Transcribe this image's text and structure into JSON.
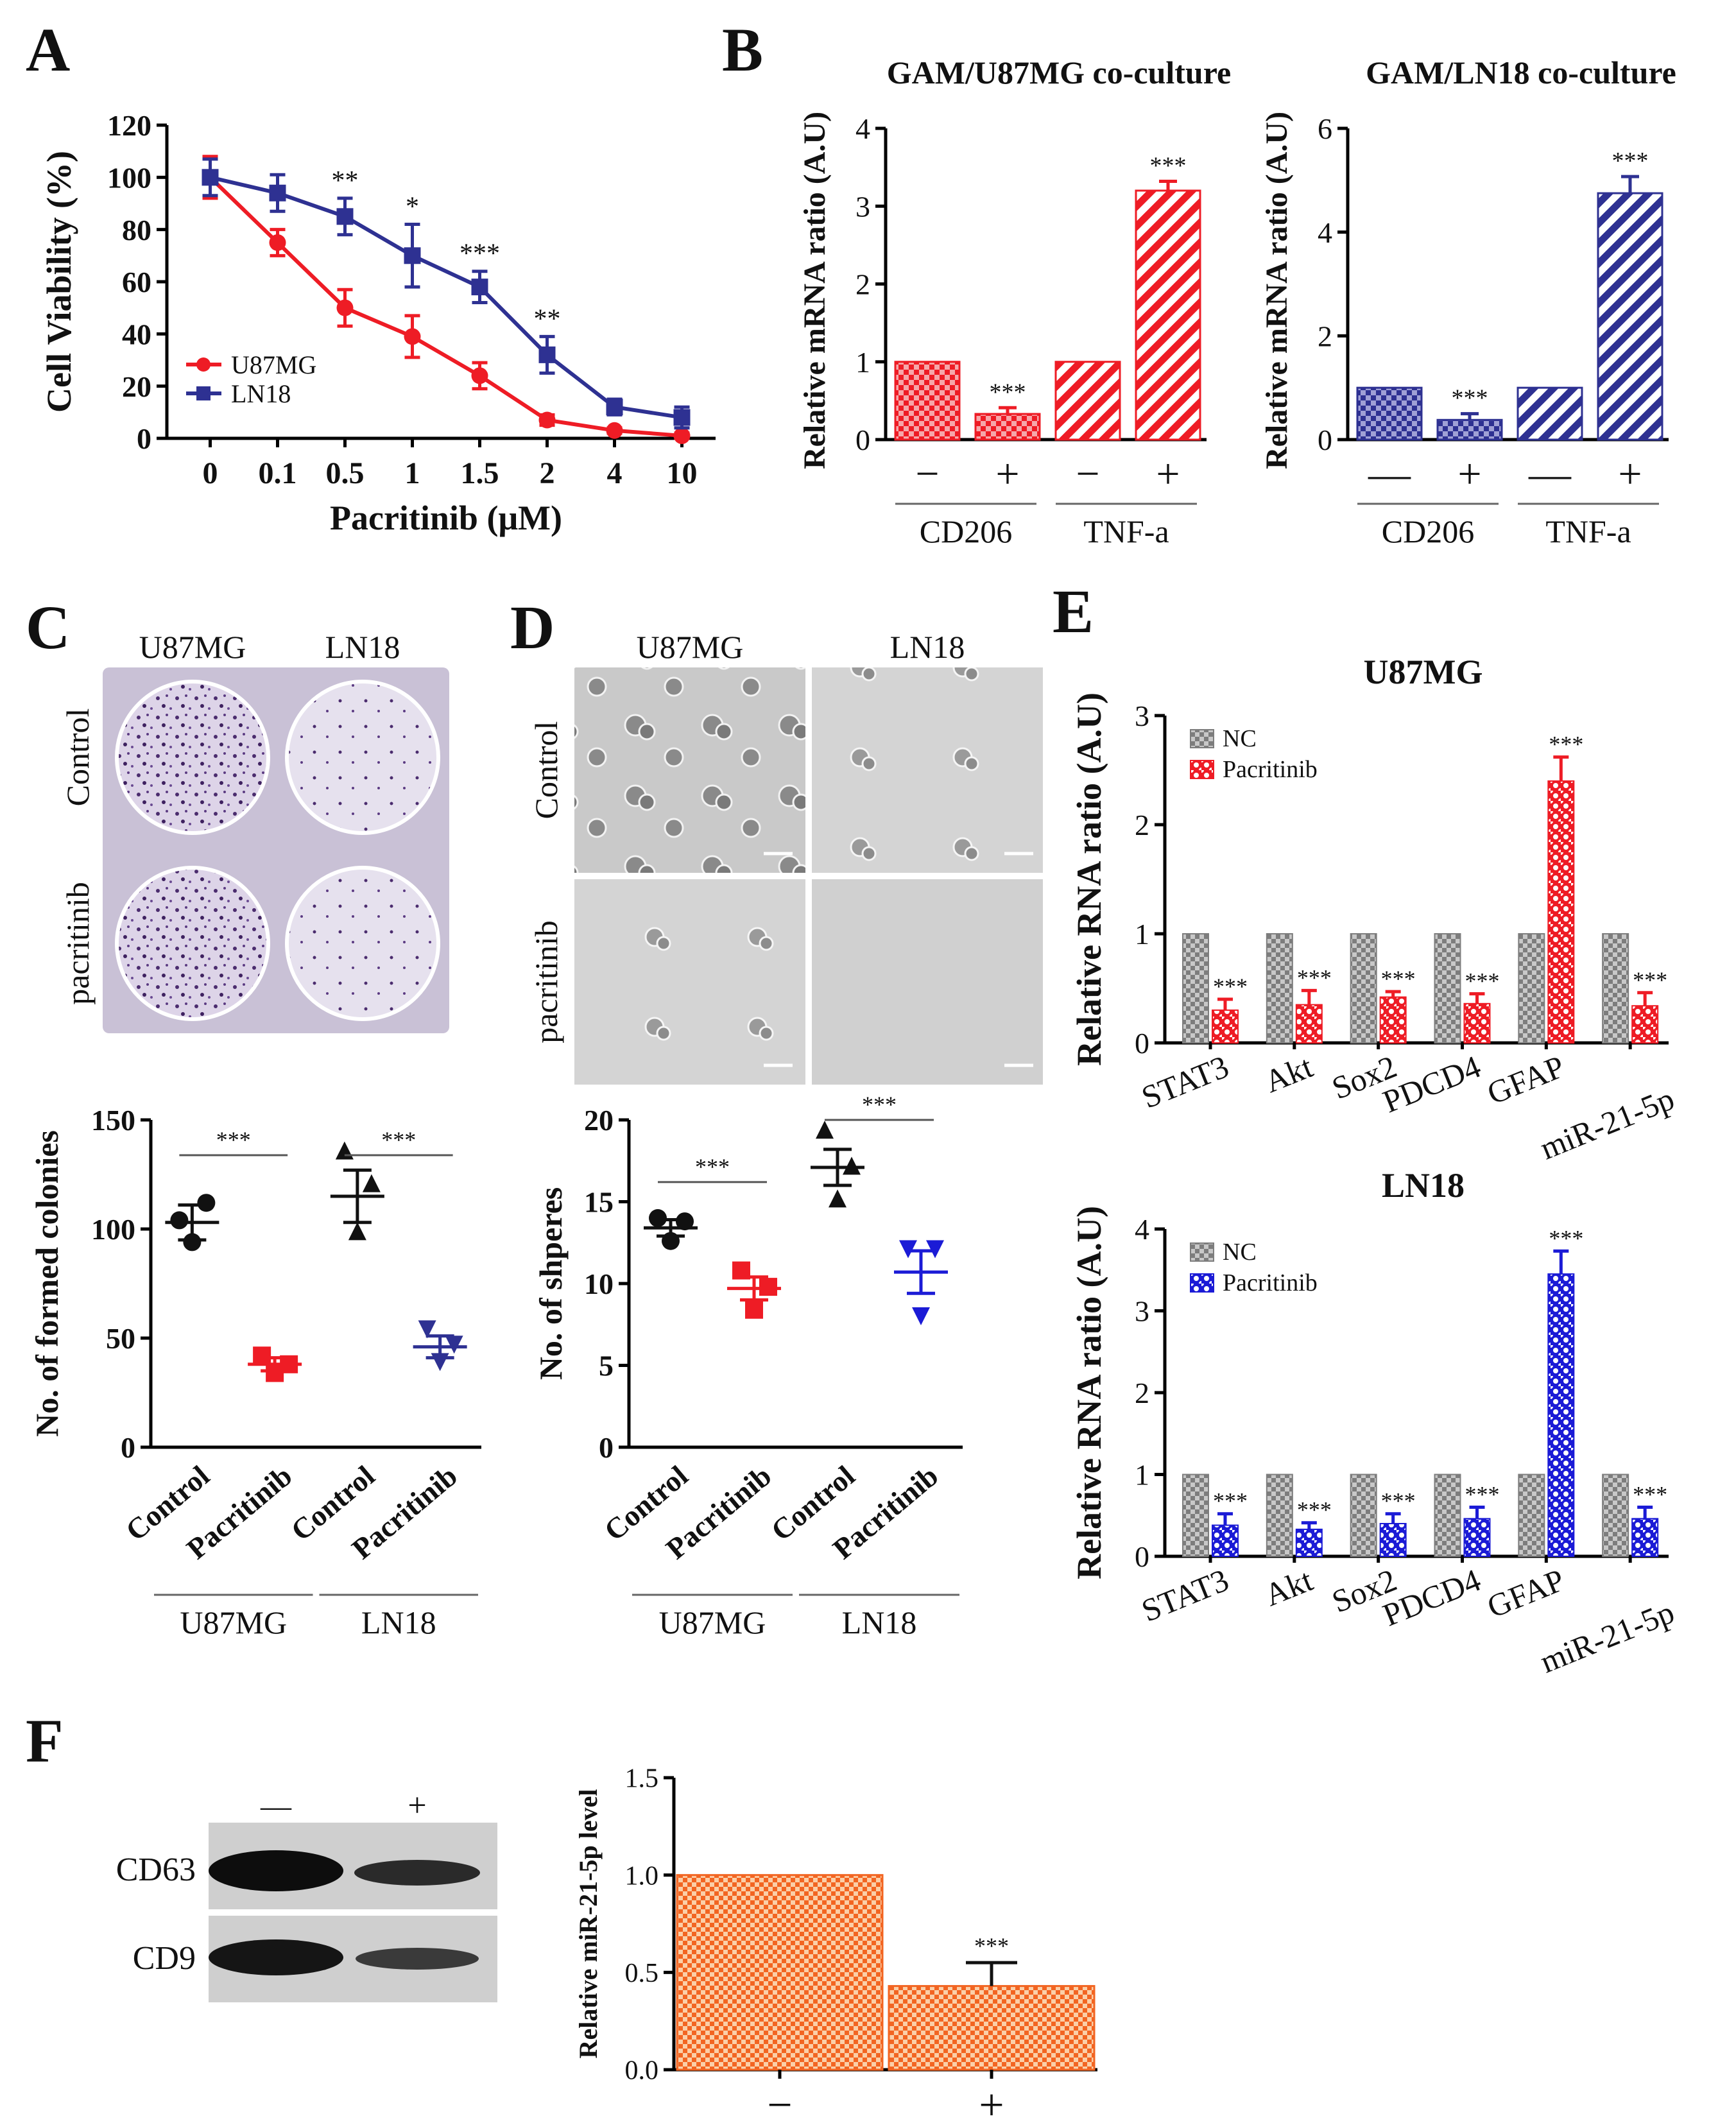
{
  "panels": {
    "A": {
      "letter": "A"
    },
    "B": {
      "letter": "B"
    },
    "C": {
      "letter": "C",
      "top_labels": [
        "U87MG",
        "LN18"
      ],
      "side_labels": [
        "Control",
        "pacritinib"
      ]
    },
    "D": {
      "letter": "D",
      "top_labels": [
        "U87MG",
        "LN18"
      ],
      "side_labels": [
        "Control",
        "pacritinib"
      ]
    },
    "E": {
      "letter": "E"
    },
    "F": {
      "letter": "F",
      "blot_lanes": [
        "—",
        "+"
      ],
      "blot_rows": [
        "CD63",
        "CD9"
      ]
    }
  },
  "colors": {
    "red": "#ee1c25",
    "blue": "#2e3192",
    "blue2": "#1b1bd6",
    "grey": "#8f8f8f",
    "orange": "#f26522",
    "black": "#111111"
  },
  "chart_data": [
    {
      "id": "A",
      "type": "line",
      "title": "",
      "xlabel": "Pacritinib (μM)",
      "ylabel": "Cell Viability (%)",
      "categories": [
        "0",
        "0.1",
        "0.5",
        "1",
        "1.5",
        "2",
        "4",
        "10"
      ],
      "ylim": [
        0,
        120
      ],
      "yticks": [
        0,
        20,
        40,
        60,
        80,
        100,
        120
      ],
      "series": [
        {
          "name": "U87MG",
          "color": "#ee1c25",
          "values": [
            100,
            75,
            50,
            39,
            24,
            7,
            3,
            1
          ],
          "errors": [
            8,
            5,
            7,
            8,
            5,
            2,
            1,
            1
          ]
        },
        {
          "name": "LN18",
          "color": "#2e3192",
          "values": [
            100,
            94,
            85,
            70,
            58,
            32,
            12,
            8
          ],
          "errors": [
            7,
            7,
            7,
            12,
            6,
            7,
            3,
            4
          ]
        }
      ],
      "annotations": [
        "",
        "",
        "**",
        "*",
        "***",
        "**",
        "",
        ""
      ],
      "legend": "bottom-left"
    },
    {
      "id": "B1",
      "type": "bar",
      "title": "GAM/U87MG co-culture",
      "ylabel": "Relative mRNA ratio (A.U)",
      "ylim": [
        0,
        4
      ],
      "yticks": [
        0,
        1,
        2,
        3,
        4
      ],
      "bars": [
        {
          "label": "−",
          "value": 1.0,
          "error": 0,
          "pattern": "check",
          "annot": ""
        },
        {
          "label": "+",
          "value": 0.33,
          "error": 0.08,
          "pattern": "check",
          "annot": "***"
        },
        {
          "label": "−",
          "value": 1.0,
          "error": 0,
          "pattern": "diag",
          "annot": ""
        },
        {
          "label": "+",
          "value": 3.2,
          "error": 0.12,
          "pattern": "diag",
          "annot": "***"
        }
      ],
      "groups": [
        "CD206",
        "TNF-a"
      ],
      "color": "#ee1c25"
    },
    {
      "id": "B2",
      "type": "bar",
      "title": "GAM/LN18 co-culture",
      "ylabel": "Relative mRNA ratio (A.U)",
      "ylim": [
        0,
        6
      ],
      "yticks": [
        0,
        2,
        4,
        6
      ],
      "bars": [
        {
          "label": "—",
          "value": 1.0,
          "error": 0,
          "pattern": "check",
          "annot": ""
        },
        {
          "label": "+",
          "value": 0.38,
          "error": 0.12,
          "pattern": "check",
          "annot": "***"
        },
        {
          "label": "—",
          "value": 1.0,
          "error": 0,
          "pattern": "diag",
          "annot": ""
        },
        {
          "label": "+",
          "value": 4.75,
          "error": 0.32,
          "pattern": "diag",
          "annot": "***"
        }
      ],
      "groups": [
        "CD206",
        "TNF-a"
      ],
      "color": "#2e3192"
    },
    {
      "id": "C",
      "type": "scatter",
      "ylabel": "No. of formed colonies",
      "ylim": [
        0,
        150
      ],
      "yticks": [
        0,
        50,
        100,
        150
      ],
      "categories": [
        "Control",
        "Pacritinib",
        "Control",
        "Pacritinib"
      ],
      "groups": [
        "U87MG",
        "LN18"
      ],
      "series": [
        {
          "marker": "circle",
          "color": "#111111",
          "points": [
            104,
            112,
            94
          ],
          "mean": 103,
          "sem": 8
        },
        {
          "marker": "square",
          "color": "#ee1c25",
          "points": [
            42,
            38,
            34
          ],
          "mean": 38,
          "sem": 3
        },
        {
          "marker": "triangle-up",
          "color": "#111111",
          "points": [
            136,
            121,
            99
          ],
          "mean": 115,
          "sem": 12
        },
        {
          "marker": "triangle-down",
          "color": "#2e3192",
          "points": [
            54,
            47,
            39
          ],
          "mean": 46,
          "sem": 5
        }
      ],
      "significance": [
        "***",
        "***"
      ]
    },
    {
      "id": "D",
      "type": "scatter",
      "ylabel": "No. of shperes",
      "ylim": [
        0,
        20
      ],
      "yticks": [
        0,
        5,
        10,
        15,
        20
      ],
      "categories": [
        "Control",
        "Pacritinib",
        "Control",
        "Pacritinib"
      ],
      "groups": [
        "U87MG",
        "LN18"
      ],
      "series": [
        {
          "marker": "circle",
          "color": "#111111",
          "points": [
            14,
            13.8,
            12.6
          ],
          "mean": 13.4,
          "sem": 0.5
        },
        {
          "marker": "square",
          "color": "#ee1c25",
          "points": [
            10.8,
            9.8,
            8.4
          ],
          "mean": 9.7,
          "sem": 0.7
        },
        {
          "marker": "triangle-up",
          "color": "#111111",
          "points": [
            19.4,
            17.2,
            15.2
          ],
          "mean": 17.1,
          "sem": 1.1
        },
        {
          "marker": "triangle-down",
          "color": "#1b1bd6",
          "points": [
            12.1,
            12.1,
            8
          ],
          "mean": 10.7,
          "sem": 1.3
        }
      ],
      "significance": [
        "***",
        "***"
      ]
    },
    {
      "id": "E1",
      "type": "bar",
      "title": "U87MG",
      "ylabel": "Relative RNA ratio (A.U)",
      "ylim": [
        0,
        3
      ],
      "yticks": [
        0,
        1,
        2,
        3
      ],
      "categories": [
        "STAT3",
        "Akt",
        "Sox2",
        "PDCD4",
        "GFAP",
        "miR-21-5p"
      ],
      "series": [
        {
          "name": "NC",
          "color": "#8f8f8f",
          "values": [
            1,
            1,
            1,
            1,
            1,
            1
          ],
          "errors": [
            0,
            0,
            0,
            0,
            0,
            0
          ]
        },
        {
          "name": "Pacritinib",
          "color": "#ee1c25",
          "values": [
            0.3,
            0.35,
            0.42,
            0.36,
            2.4,
            0.34
          ],
          "errors": [
            0.1,
            0.13,
            0.05,
            0.09,
            0.22,
            0.12
          ]
        }
      ],
      "annotations": [
        "***",
        "***",
        "***",
        "***",
        "***",
        "***"
      ],
      "legend": "top-left"
    },
    {
      "id": "E2",
      "type": "bar",
      "title": "LN18",
      "ylabel": "Relative RNA ratio (A.U)",
      "ylim": [
        0,
        4
      ],
      "yticks": [
        0,
        1,
        2,
        3,
        4
      ],
      "categories": [
        "STAT3",
        "Akt",
        "Sox2",
        "PDCD4",
        "GFAP",
        "miR-21-5p"
      ],
      "series": [
        {
          "name": "NC",
          "color": "#8f8f8f",
          "values": [
            1,
            1,
            1,
            1,
            1,
            1
          ],
          "errors": [
            0,
            0,
            0,
            0,
            0,
            0
          ]
        },
        {
          "name": "Pacritinib",
          "color": "#1b1bd6",
          "values": [
            0.38,
            0.33,
            0.4,
            0.46,
            3.45,
            0.46
          ],
          "errors": [
            0.14,
            0.08,
            0.12,
            0.14,
            0.28,
            0.14
          ]
        }
      ],
      "annotations": [
        "***",
        "***",
        "***",
        "***",
        "***",
        "***"
      ],
      "legend": "top-left"
    },
    {
      "id": "F",
      "type": "bar",
      "ylabel": "Relative miR-21-5p level",
      "ylim": [
        0,
        1.5
      ],
      "yticks": [
        "0.0",
        "0.5",
        "1.0",
        "1.5"
      ],
      "categories": [
        "−",
        "+"
      ],
      "values": [
        1.0,
        0.43
      ],
      "errors": [
        0,
        0.12
      ],
      "annotations": [
        "",
        "***"
      ],
      "color": "#f26522"
    }
  ]
}
